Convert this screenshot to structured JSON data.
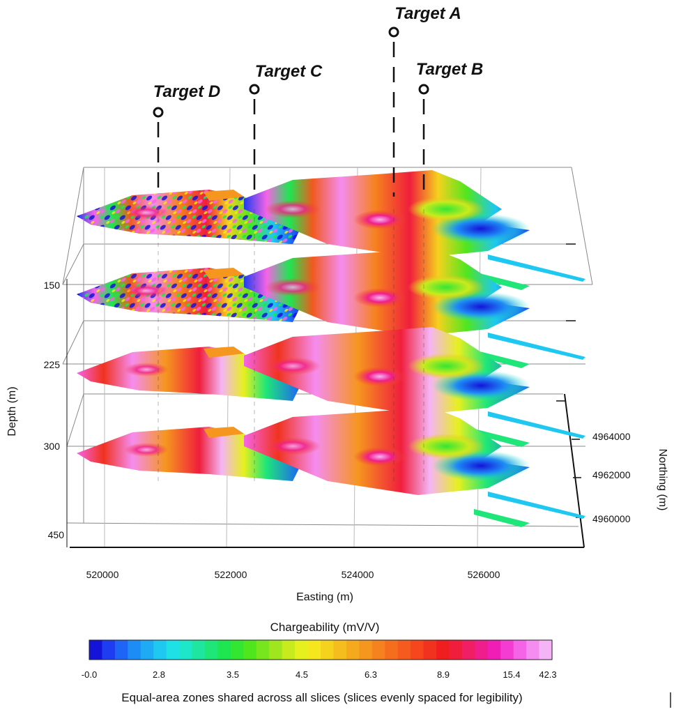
{
  "targets": [
    {
      "id": "D",
      "label": "Target D"
    },
    {
      "id": "C",
      "label": "Target C"
    },
    {
      "id": "A",
      "label": "Target A"
    },
    {
      "id": "B",
      "label": "Target B"
    }
  ],
  "axes": {
    "depth_title": "Depth (m)",
    "depth_ticks": [
      "150",
      "225",
      "300",
      "450"
    ],
    "easting_title": "Easting (m)",
    "easting_ticks": [
      "520000",
      "522000",
      "524000",
      "526000"
    ],
    "northing_title": "Northing (m)",
    "northing_ticks": [
      "4964000",
      "4962000",
      "4960000"
    ]
  },
  "colorbar": {
    "title": "Chargeability (mV/V)",
    "ticks": [
      "-0.0",
      "2.8",
      "3.5",
      "4.5",
      "6.3",
      "8.9",
      "15.4",
      "42.3"
    ],
    "note": "Equal-area zones shared across all slices (slices evenly spaced for legibility)",
    "colors": [
      "#1414d8",
      "#1e3cf0",
      "#1e64f5",
      "#1e8cf5",
      "#1eaaf5",
      "#1ec8f0",
      "#1ee1e6",
      "#1ee6c8",
      "#1ee6a0",
      "#1ee678",
      "#1ee650",
      "#32e632",
      "#50e61e",
      "#78e61e",
      "#a0e61e",
      "#c8eb1e",
      "#e6f01e",
      "#f5e61e",
      "#f5d21e",
      "#f5be1e",
      "#f5aa1e",
      "#f5961e",
      "#f5821e",
      "#f56e1e",
      "#f55a1e",
      "#f5461e",
      "#f0321e",
      "#f01e1e",
      "#f01e3c",
      "#f01e64",
      "#f01e8c",
      "#f01eb4",
      "#f53cd2",
      "#f564e6",
      "#f58cf0",
      "#f5b4f5"
    ]
  }
}
